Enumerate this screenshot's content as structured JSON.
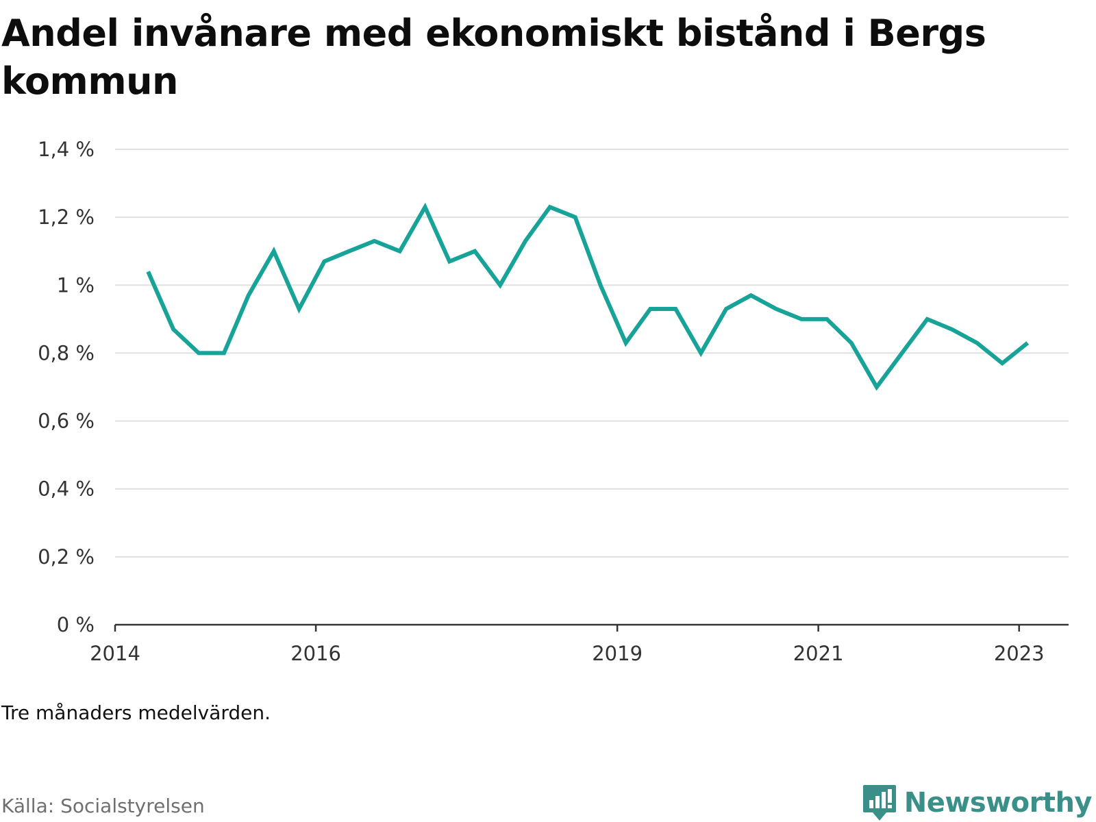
{
  "title": "Andel invånare med ekonomiskt bistånd i Bergs kommun",
  "note": "Tre månaders medelvärden.",
  "source": "Källa: Socialstyrelsen",
  "brand": {
    "name": "Newsworthy",
    "icon": "newsworthy-logo-icon",
    "color": "#3a8f88"
  },
  "colors": {
    "line": "#17a398",
    "grid": "#e0e0e0",
    "axis": "#333333"
  },
  "chart_data": {
    "type": "line",
    "title": "Andel invånare med ekonomiskt bistånd i Bergs kommun",
    "xlabel": "",
    "ylabel": "",
    "y_unit": "%",
    "ylim": [
      0,
      1.4
    ],
    "xlim": [
      "2014-01-01",
      "2023-06-30"
    ],
    "y_ticks": [
      "0 %",
      "0,2 %",
      "0,4 %",
      "0,6 %",
      "0,8 %",
      "1 %",
      "1,2 %",
      "1,4 %"
    ],
    "x_ticks": [
      "2014",
      "2016",
      "2019",
      "2021",
      "2023"
    ],
    "grid": true,
    "legend": "none",
    "series": [
      {
        "values": [
          {
            "x": "2014-05-01",
            "y": 1.04
          },
          {
            "x": "2014-08-01",
            "y": 0.87
          },
          {
            "x": "2014-11-01",
            "y": 0.8
          },
          {
            "x": "2015-02-01",
            "y": 0.8
          },
          {
            "x": "2015-05-01",
            "y": 0.97
          },
          {
            "x": "2015-08-01",
            "y": 1.1
          },
          {
            "x": "2015-11-01",
            "y": 0.93
          },
          {
            "x": "2016-02-01",
            "y": 1.07
          },
          {
            "x": "2016-05-01",
            "y": 1.1
          },
          {
            "x": "2016-08-01",
            "y": 1.13
          },
          {
            "x": "2016-11-01",
            "y": 1.1
          },
          {
            "x": "2017-02-01",
            "y": 1.23
          },
          {
            "x": "2017-05-01",
            "y": 1.07
          },
          {
            "x": "2017-08-01",
            "y": 1.1
          },
          {
            "x": "2017-11-01",
            "y": 1.0
          },
          {
            "x": "2018-02-01",
            "y": 1.13
          },
          {
            "x": "2018-05-01",
            "y": 1.23
          },
          {
            "x": "2018-08-01",
            "y": 1.2
          },
          {
            "x": "2018-11-01",
            "y": 1.0
          },
          {
            "x": "2019-02-01",
            "y": 0.83
          },
          {
            "x": "2019-05-01",
            "y": 0.93
          },
          {
            "x": "2019-08-01",
            "y": 0.93
          },
          {
            "x": "2019-11-01",
            "y": 0.8
          },
          {
            "x": "2020-02-01",
            "y": 0.93
          },
          {
            "x": "2020-05-01",
            "y": 0.97
          },
          {
            "x": "2020-08-01",
            "y": 0.93
          },
          {
            "x": "2020-11-01",
            "y": 0.9
          },
          {
            "x": "2021-02-01",
            "y": 0.9
          },
          {
            "x": "2021-05-01",
            "y": 0.83
          },
          {
            "x": "2021-08-01",
            "y": 0.7
          },
          {
            "x": "2021-11-01",
            "y": 0.8
          },
          {
            "x": "2022-02-01",
            "y": 0.9
          },
          {
            "x": "2022-05-01",
            "y": 0.87
          },
          {
            "x": "2022-08-01",
            "y": 0.83
          },
          {
            "x": "2022-11-01",
            "y": 0.77
          },
          {
            "x": "2023-02-01",
            "y": 0.83
          }
        ]
      }
    ]
  }
}
